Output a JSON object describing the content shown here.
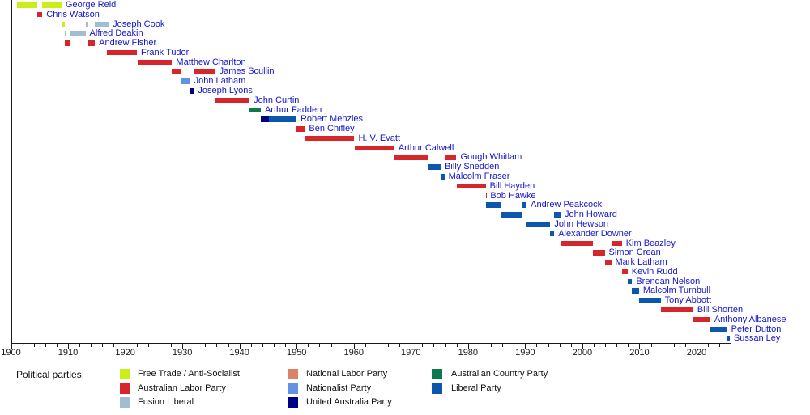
{
  "chart_data": {
    "type": "timeline",
    "x_axis": {
      "start": 1900,
      "end": 2026,
      "minor_tick_step": 2,
      "major_tick_step": 10,
      "tick_labels": [
        "1900",
        "1910",
        "1920",
        "1930",
        "1940",
        "1950",
        "1960",
        "1970",
        "1980",
        "1990",
        "2000",
        "2010",
        "2020"
      ]
    },
    "legend": {
      "label": "Political parties:",
      "columns": [
        [
          "free_trade",
          "labor",
          "fusion_liberal"
        ],
        [
          "national_labor",
          "nationalist",
          "uap"
        ],
        [
          "country",
          "liberal"
        ]
      ]
    },
    "parties": {
      "free_trade": {
        "name": "Free Trade / Anti-Socialist",
        "color": "#cbee16"
      },
      "labor": {
        "name": "Australian Labor Party",
        "color": "#d6252b"
      },
      "fusion_liberal": {
        "name": "Fusion Liberal",
        "color": "#a0bed0"
      },
      "national_labor": {
        "name": "National Labor Party",
        "color": "#dd8168"
      },
      "nationalist": {
        "name": "Nationalist Party",
        "color": "#6292e4"
      },
      "uap": {
        "name": "United Australia Party",
        "color": "#000087"
      },
      "country": {
        "name": "Australian Country Party",
        "color": "#0b7a4e"
      },
      "liberal": {
        "name": "Liberal Party",
        "color": "#0a57ad"
      }
    },
    "leaders": [
      {
        "name": "George Reid",
        "terms": [
          {
            "start": 1901.0,
            "end": 1904.65,
            "party": "free_trade"
          },
          {
            "start": 1905.5,
            "end": 1908.85,
            "party": "free_trade"
          }
        ]
      },
      {
        "name": "Chris Watson",
        "terms": [
          {
            "start": 1904.65,
            "end": 1905.5,
            "party": "labor"
          }
        ]
      },
      {
        "name": "Joseph Cook",
        "terms": [
          {
            "start": 1908.85,
            "end": 1909.4,
            "party": "free_trade"
          },
          {
            "start": 1913.05,
            "end": 1913.48,
            "party": "fusion_liberal"
          },
          {
            "start": 1914.7,
            "end": 1917.1,
            "party": "fusion_liberal"
          }
        ]
      },
      {
        "name": "Alfred Deakin",
        "terms": [
          {
            "start": 1909.4,
            "end": 1909.55,
            "party": "fusion_liberal"
          },
          {
            "start": 1910.3,
            "end": 1913.05,
            "party": "fusion_liberal"
          }
        ]
      },
      {
        "name": "Andrew Fisher",
        "terms": [
          {
            "start": 1909.42,
            "end": 1910.3,
            "party": "labor"
          },
          {
            "start": 1913.5,
            "end": 1914.7,
            "party": "labor"
          }
        ]
      },
      {
        "name": "Frank Tudor",
        "terms": [
          {
            "start": 1916.85,
            "end": 1922.05,
            "party": "labor"
          }
        ]
      },
      {
        "name": "Matthew Charlton",
        "terms": [
          {
            "start": 1922.2,
            "end": 1928.2,
            "party": "labor"
          }
        ]
      },
      {
        "name": "James Scullin",
        "terms": [
          {
            "start": 1928.2,
            "end": 1929.8,
            "party": "labor"
          },
          {
            "start": 1932.05,
            "end": 1935.75,
            "party": "labor"
          }
        ]
      },
      {
        "name": "John Latham",
        "terms": [
          {
            "start": 1929.8,
            "end": 1931.35,
            "party": "nationalist"
          }
        ]
      },
      {
        "name": "Joseph Lyons",
        "terms": [
          {
            "start": 1931.35,
            "end": 1932.02,
            "party": "uap"
          }
        ]
      },
      {
        "name": "John Curtin",
        "terms": [
          {
            "start": 1935.75,
            "end": 1941.77,
            "party": "labor"
          }
        ]
      },
      {
        "name": "Arthur Fadden",
        "terms": [
          {
            "start": 1941.77,
            "end": 1943.73,
            "party": "country"
          }
        ]
      },
      {
        "name": "Robert Menzies",
        "terms": [
          {
            "start": 1943.73,
            "end": 1945.15,
            "party": "uap"
          },
          {
            "start": 1945.15,
            "end": 1949.97,
            "party": "liberal"
          }
        ]
      },
      {
        "name": "Ben Chifley",
        "terms": [
          {
            "start": 1949.97,
            "end": 1951.45,
            "party": "labor"
          }
        ]
      },
      {
        "name": "H. V. Evatt",
        "terms": [
          {
            "start": 1951.45,
            "end": 1960.1,
            "party": "labor"
          }
        ]
      },
      {
        "name": "Arthur Calwell",
        "terms": [
          {
            "start": 1960.17,
            "end": 1967.1,
            "party": "labor"
          }
        ]
      },
      {
        "name": "Gough Whitlam",
        "terms": [
          {
            "start": 1967.1,
            "end": 1972.92,
            "party": "labor"
          },
          {
            "start": 1975.86,
            "end": 1977.97,
            "party": "labor"
          }
        ]
      },
      {
        "name": "Billy Snedden",
        "terms": [
          {
            "start": 1972.92,
            "end": 1975.22,
            "party": "liberal"
          }
        ]
      },
      {
        "name": "Malcolm Fraser",
        "terms": [
          {
            "start": 1975.22,
            "end": 1975.86,
            "party": "liberal"
          }
        ]
      },
      {
        "name": "Bill Hayden",
        "terms": [
          {
            "start": 1977.97,
            "end": 1983.09,
            "party": "labor"
          }
        ]
      },
      {
        "name": "Bob Hawke",
        "terms": [
          {
            "start": 1983.09,
            "end": 1983.19,
            "party": "labor"
          }
        ]
      },
      {
        "name": "Andrew Peakcock",
        "terms": [
          {
            "start": 1983.19,
            "end": 1985.68,
            "party": "liberal"
          },
          {
            "start": 1989.35,
            "end": 1990.25,
            "party": "liberal"
          }
        ]
      },
      {
        "name": "John Howard",
        "terms": [
          {
            "start": 1985.68,
            "end": 1989.35,
            "party": "liberal"
          },
          {
            "start": 1995.08,
            "end": 1996.19,
            "party": "liberal"
          }
        ]
      },
      {
        "name": "John Hewson",
        "terms": [
          {
            "start": 1990.25,
            "end": 1994.39,
            "party": "liberal"
          }
        ]
      },
      {
        "name": "Alexander Downer",
        "terms": [
          {
            "start": 1994.39,
            "end": 1995.08,
            "party": "liberal"
          }
        ]
      },
      {
        "name": "Kim Beazley",
        "terms": [
          {
            "start": 1996.22,
            "end": 2001.89,
            "party": "labor"
          },
          {
            "start": 2005.07,
            "end": 2006.92,
            "party": "labor"
          }
        ]
      },
      {
        "name": "Simon Crean",
        "terms": [
          {
            "start": 2001.89,
            "end": 2003.92,
            "party": "labor"
          }
        ]
      },
      {
        "name": "Mark Latham",
        "terms": [
          {
            "start": 2003.92,
            "end": 2005.05,
            "party": "labor"
          }
        ]
      },
      {
        "name": "Kevin Rudd",
        "terms": [
          {
            "start": 2006.92,
            "end": 2007.92,
            "party": "labor"
          }
        ]
      },
      {
        "name": "Brendan Nelson",
        "terms": [
          {
            "start": 2007.92,
            "end": 2008.71,
            "party": "liberal"
          }
        ]
      },
      {
        "name": "Malcolm Turnbull",
        "terms": [
          {
            "start": 2008.71,
            "end": 2009.92,
            "party": "liberal"
          }
        ]
      },
      {
        "name": "Tony Abbott",
        "terms": [
          {
            "start": 2009.92,
            "end": 2013.72,
            "party": "liberal"
          }
        ]
      },
      {
        "name": "Bill Shorten",
        "terms": [
          {
            "start": 2013.8,
            "end": 2019.41,
            "party": "labor"
          }
        ]
      },
      {
        "name": "Anthony Albanese",
        "terms": [
          {
            "start": 2019.41,
            "end": 2022.39,
            "party": "labor"
          }
        ]
      },
      {
        "name": "Peter Dutton",
        "terms": [
          {
            "start": 2022.41,
            "end": 2025.34,
            "party": "liberal"
          }
        ]
      },
      {
        "name": "Sussan Ley",
        "terms": [
          {
            "start": 2025.37,
            "end": 2025.8,
            "party": "liberal"
          }
        ]
      }
    ]
  }
}
